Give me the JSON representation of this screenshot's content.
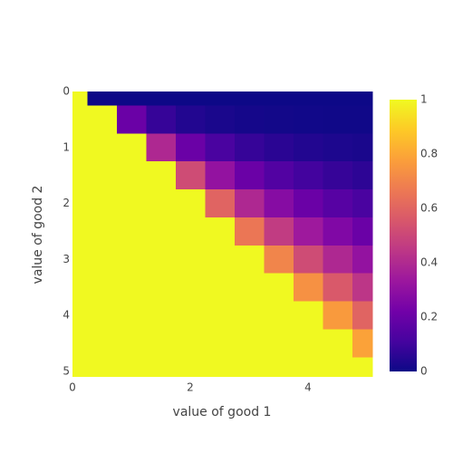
{
  "chart_data": {
    "type": "heatmap",
    "xlabel": "value of good 1",
    "ylabel": "value of good 2",
    "x": [
      0,
      0.5,
      1,
      1.5,
      2,
      2.5,
      3,
      3.5,
      4,
      4.5,
      5
    ],
    "y": [
      0,
      0.5,
      1,
      1.5,
      2,
      2.5,
      3,
      3.5,
      4,
      4.5,
      5
    ],
    "z": [
      [
        1,
        0,
        0,
        0,
        0,
        0,
        0,
        0,
        0,
        0,
        0
      ],
      [
        1,
        1,
        0.203,
        0.08,
        0.041,
        0.025,
        0.016,
        0.011,
        0.008,
        0.006,
        0.005
      ],
      [
        1,
        1,
        1,
        0.393,
        0.203,
        0.122,
        0.08,
        0.056,
        0.041,
        0.031,
        0.025
      ],
      [
        1,
        1,
        1,
        1,
        0.516,
        0.309,
        0.203,
        0.142,
        0.105,
        0.08,
        0.063
      ],
      [
        1,
        1,
        1,
        1,
        1,
        0.599,
        0.393,
        0.276,
        0.203,
        0.155,
        0.122
      ],
      [
        1,
        1,
        1,
        1,
        1,
        1,
        0.658,
        0.461,
        0.339,
        0.259,
        0.203
      ],
      [
        1,
        1,
        1,
        1,
        1,
        1,
        1,
        0.701,
        0.516,
        0.393,
        0.309
      ],
      [
        1,
        1,
        1,
        1,
        1,
        1,
        1,
        1,
        0.736,
        0.561,
        0.44
      ],
      [
        1,
        1,
        1,
        1,
        1,
        1,
        1,
        1,
        1,
        0.763,
        0.599
      ],
      [
        1,
        1,
        1,
        1,
        1,
        1,
        1,
        1,
        1,
        1,
        0.785
      ],
      [
        1,
        1,
        1,
        1,
        1,
        1,
        1,
        1,
        1,
        1,
        1
      ]
    ],
    "xlim": [
      0,
      5.1
    ],
    "ylim": [
      0,
      5.1
    ],
    "yreversed": true,
    "xticks": [
      0,
      2,
      4
    ],
    "yticks": [
      0,
      1,
      2,
      3,
      4,
      5
    ],
    "zlim": [
      0,
      1
    ],
    "colorbar_ticks": [
      0,
      0.2,
      0.4,
      0.6,
      0.8,
      1
    ],
    "colorscale": [
      "#0d0887",
      "#46039f",
      "#7201a8",
      "#9c179e",
      "#bd3786",
      "#d8576b",
      "#ed7953",
      "#fb9f3a",
      "#fdca26",
      "#f0f921"
    ]
  }
}
